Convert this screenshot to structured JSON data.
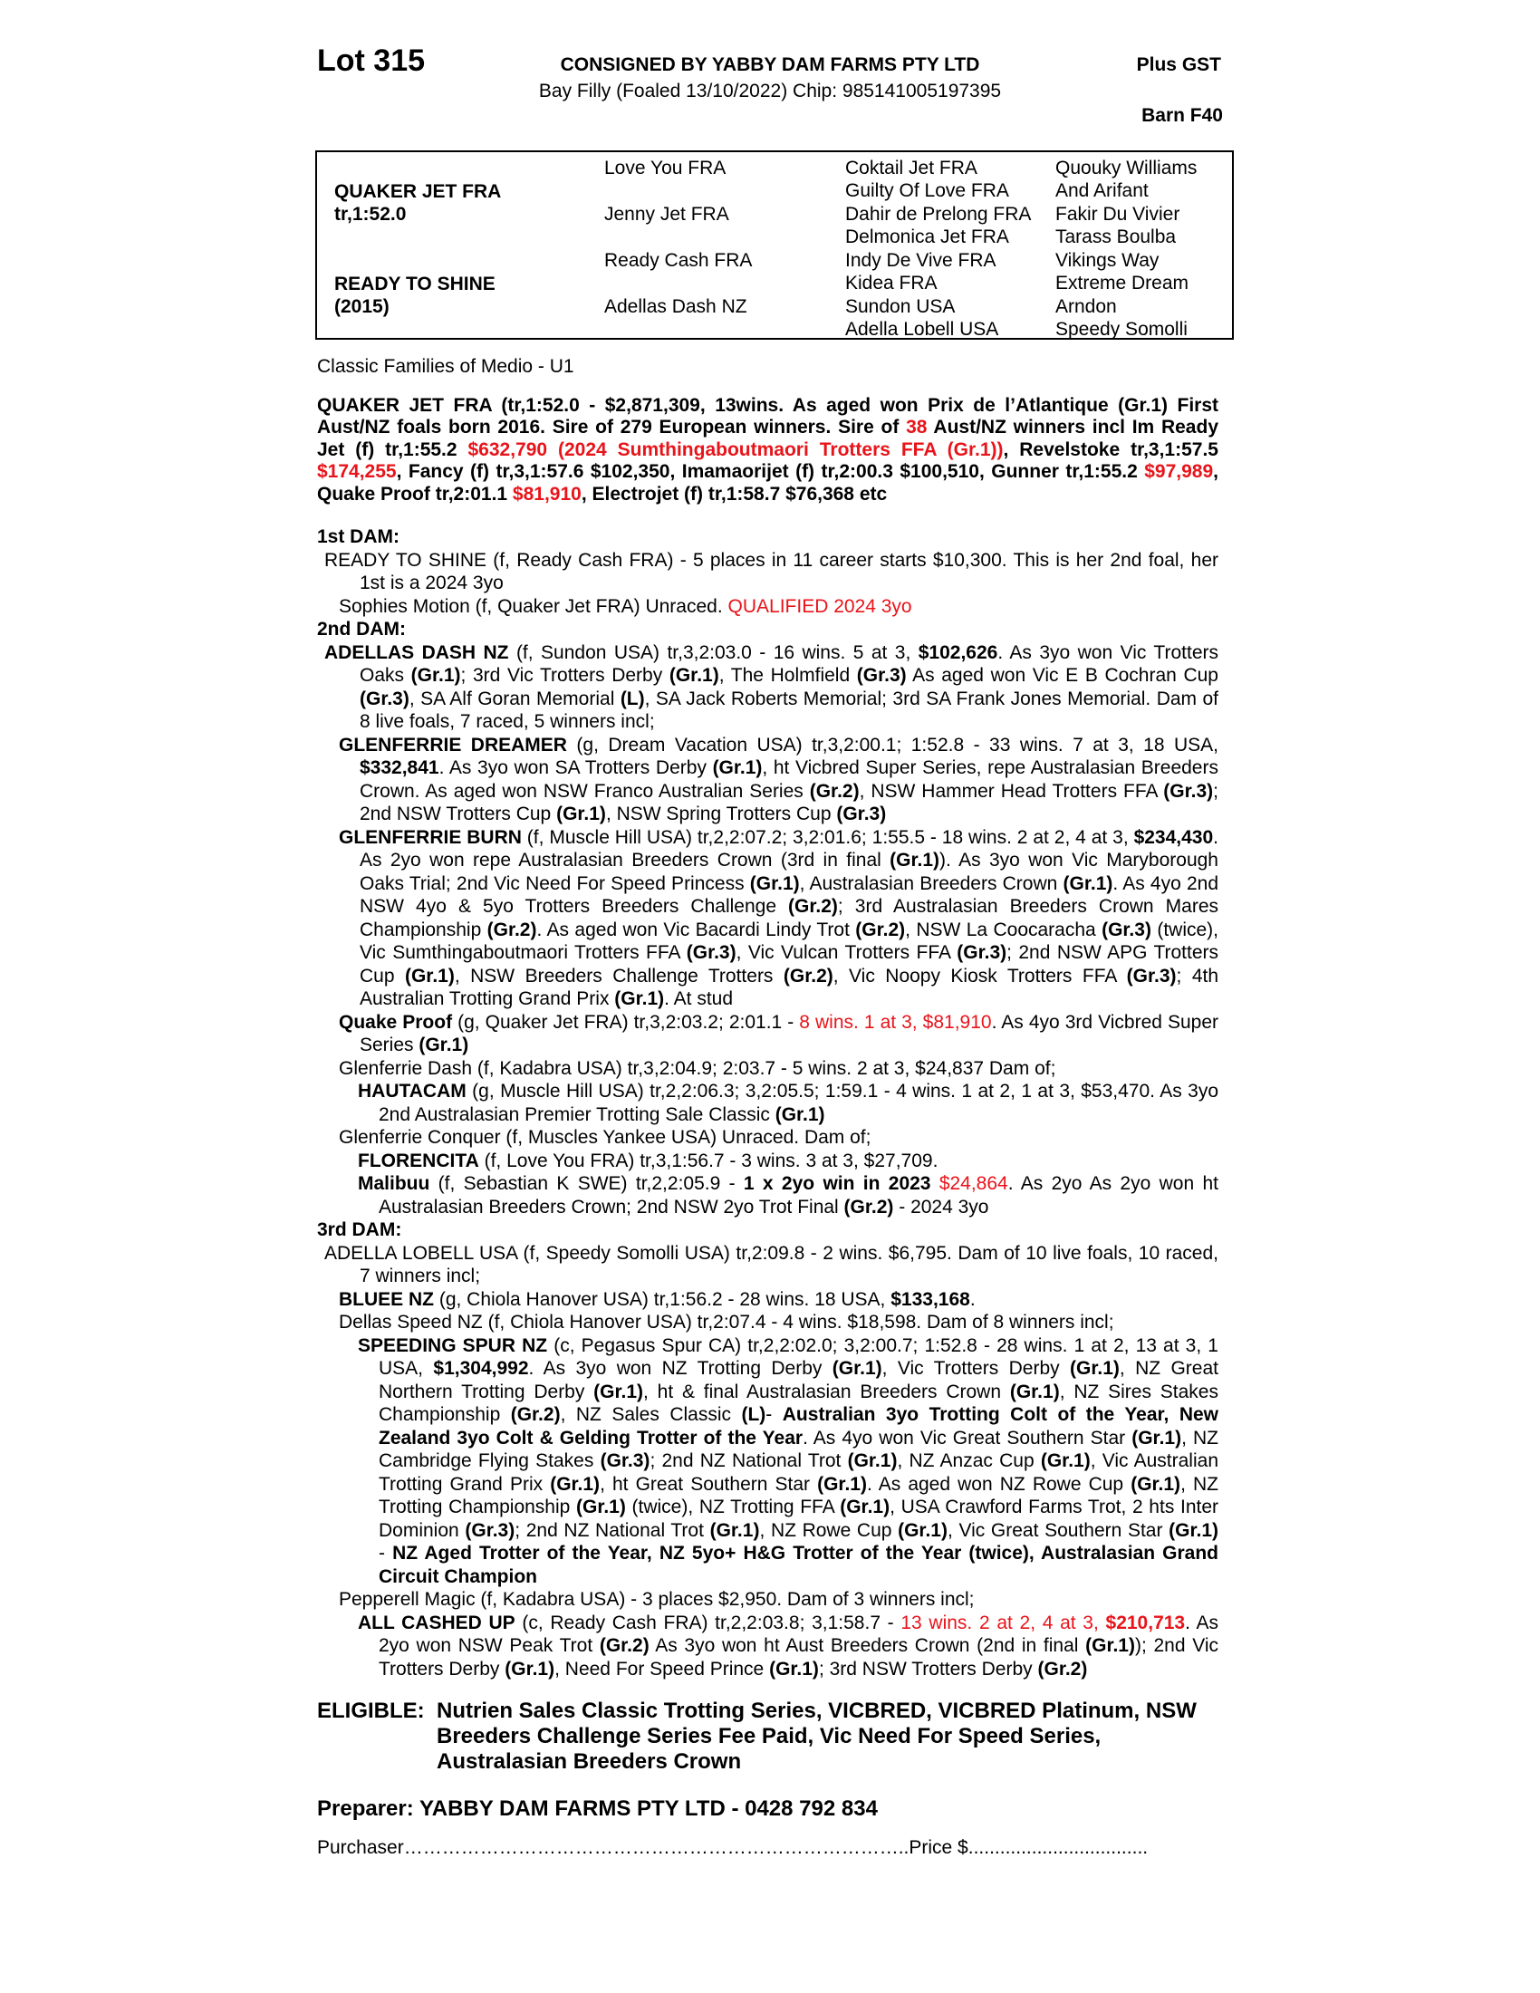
{
  "header": {
    "lot": "Lot 315",
    "consigned": "CONSIGNED BY YABBY DAM FARMS PTY LTD",
    "plus_gst": "Plus GST",
    "description": "Bay Filly (Foaled  13/10/2022) Chip: 985141005197395",
    "barn": "Barn F40"
  },
  "pedigree": {
    "sire": {
      "name": "QUAKER JET FRA",
      "record": "tr,1:52.0"
    },
    "dam": {
      "name": "READY TO SHINE",
      "year": "(2015)"
    },
    "grandparents": [
      "Love You FRA",
      "Jenny Jet FRA",
      "Ready Cash FRA",
      "Adellas Dash NZ"
    ],
    "great_grandparents": [
      "Coktail Jet FRA",
      "Guilty Of Love FRA",
      "Dahir de Prelong FRA",
      "Delmonica Jet FRA",
      "Indy De Vive FRA",
      "Kidea FRA",
      "Sundon USA",
      "Adella Lobell USA"
    ],
    "great_great_grandparents": [
      "Quouky Williams",
      "And Arifant",
      "Fakir Du Vivier",
      "Tarass Boulba",
      "Vikings Way",
      "Extreme Dream",
      "Arndon",
      "Speedy Somolli"
    ]
  },
  "family": "Classic Families of Medio - U1",
  "sire_runs": [
    [
      "QUAKER JET FRA (tr,1:52.0 - $2,871,309, 13wins. As aged won Prix de l’Atlantique (Gr.1) First Aust/NZ foals born 2016. Sire of 279 European winners. Sire of ",
      "b"
    ],
    [
      "38",
      "rb"
    ],
    [
      " Aust/NZ winners incl Im Ready Jet (f) tr,1:55.2 ",
      "b"
    ],
    [
      "$632,790 (2024 Sumthingaboutmaori Trotters FFA (Gr.1))",
      "rb"
    ],
    [
      ", Revelstoke tr,3,1:57.5 ",
      "b"
    ],
    [
      "$174,255",
      "rb"
    ],
    [
      ", Fancy (f) tr,3,1:57.6 $102,350, Imamaorijet (f) tr,2:00.3 $100,510, Gunner tr,1:55.2 ",
      "b"
    ],
    [
      "$97,989",
      "rb"
    ],
    [
      ", Quake Proof tr,2:01.1 ",
      "b"
    ],
    [
      "$81,910",
      "rb"
    ],
    [
      ",  Electrojet (f) tr,1:58.7 $76,368 etc",
      "b"
    ]
  ],
  "colors": {
    "highlight": "#e8141a",
    "text": "#000000"
  },
  "sections": [
    {
      "heading": "1st DAM:",
      "entries": [
        {
          "level": 0,
          "runs": [
            [
              "READY TO SHINE (f, Ready Cash FRA) - 5 places in 11 career starts $10,300. This is her 2nd foal, her 1st is a 2024 3yo",
              ""
            ]
          ]
        },
        {
          "level": 1,
          "runs": [
            [
              "Sophies Motion (f, Quaker Jet FRA) Unraced. ",
              ""
            ],
            [
              "QUALIFIED 2024 3yo",
              "r"
            ]
          ]
        }
      ]
    },
    {
      "heading": "2nd DAM:",
      "entries": [
        {
          "level": 0,
          "runs": [
            [
              "ADELLAS DASH NZ",
              "b"
            ],
            [
              " (f, Sundon USA) tr,3,2:03.0 - 16 wins. 5 at 3, ",
              ""
            ],
            [
              "$102,626",
              "b"
            ],
            [
              ". As 3yo won Vic Trotters Oaks ",
              ""
            ],
            [
              "(Gr.1)",
              "b"
            ],
            [
              "; 3rd Vic Trotters Derby ",
              ""
            ],
            [
              "(Gr.1)",
              "b"
            ],
            [
              ", The Holmfield ",
              ""
            ],
            [
              "(Gr.3)",
              "b"
            ],
            [
              " As aged won Vic E B Cochran Cup ",
              ""
            ],
            [
              "(Gr.3)",
              "b"
            ],
            [
              ", SA Alf Goran Memorial ",
              ""
            ],
            [
              "(L)",
              "b"
            ],
            [
              ", SA Jack Roberts Memorial; 3rd SA Frank Jones Memorial. Dam of 8 live foals, 7 raced, 5 winners incl;",
              ""
            ]
          ]
        },
        {
          "level": 1,
          "runs": [
            [
              "GLENFERRIE DREAMER",
              "b"
            ],
            [
              " (g, Dream Vacation USA) tr,3,2:00.1; 1:52.8 - 33 wins. 7 at 3, 18 USA, ",
              ""
            ],
            [
              "$332,841",
              "b"
            ],
            [
              ". As 3yo won SA Trotters Derby ",
              ""
            ],
            [
              "(Gr.1)",
              "b"
            ],
            [
              ", ht Vicbred Super Series, repe Australasian Breeders Crown. As aged won NSW Franco Australian Series ",
              ""
            ],
            [
              "(Gr.2)",
              "b"
            ],
            [
              ", NSW Hammer Head Trotters FFA ",
              ""
            ],
            [
              "(Gr.3)",
              "b"
            ],
            [
              "; 2nd NSW Trotters Cup ",
              ""
            ],
            [
              "(Gr.1)",
              "b"
            ],
            [
              ", NSW Spring Trotters Cup ",
              ""
            ],
            [
              "(Gr.3)",
              "b"
            ]
          ]
        },
        {
          "level": 1,
          "runs": [
            [
              "GLENFERRIE BURN",
              "b"
            ],
            [
              " (f, Muscle Hill USA) tr,2,2:07.2; 3,2:01.6; 1:55.5 - 18 wins. 2 at 2, 4 at 3, ",
              ""
            ],
            [
              "$234,430",
              "b"
            ],
            [
              ". As 2yo won repe Australasian Breeders Crown (3rd in final ",
              ""
            ],
            [
              "(Gr.1)",
              "b"
            ],
            [
              "). As 3yo won Vic Maryborough Oaks Trial; 2nd Vic Need For Speed Princess ",
              ""
            ],
            [
              "(Gr.1)",
              "b"
            ],
            [
              ", Australasian Breeders Crown ",
              ""
            ],
            [
              "(Gr.1)",
              "b"
            ],
            [
              ". As 4yo 2nd NSW 4yo & 5yo Trotters Breeders Challenge ",
              ""
            ],
            [
              "(Gr.2)",
              "b"
            ],
            [
              "; 3rd Australasian Breeders Crown Mares Championship ",
              ""
            ],
            [
              "(Gr.2)",
              "b"
            ],
            [
              ". As aged won Vic Bacardi Lindy Trot ",
              ""
            ],
            [
              "(Gr.2)",
              "b"
            ],
            [
              ", NSW La Coocaracha ",
              ""
            ],
            [
              "(Gr.3)",
              "b"
            ],
            [
              " (twice), Vic Sumthingaboutmaori Trotters FFA ",
              ""
            ],
            [
              "(Gr.3)",
              "b"
            ],
            [
              ", Vic Vulcan Trotters FFA ",
              ""
            ],
            [
              "(Gr.3)",
              "b"
            ],
            [
              "; 2nd NSW APG Trotters Cup ",
              ""
            ],
            [
              "(Gr.1)",
              "b"
            ],
            [
              ", NSW Breeders Challenge Trotters ",
              ""
            ],
            [
              "(Gr.2)",
              "b"
            ],
            [
              ", Vic Noopy Kiosk Trotters FFA ",
              ""
            ],
            [
              "(Gr.3)",
              "b"
            ],
            [
              "; 4th Australian Trotting Grand Prix ",
              ""
            ],
            [
              "(Gr.1)",
              "b"
            ],
            [
              ". At stud",
              ""
            ]
          ]
        },
        {
          "level": 1,
          "runs": [
            [
              "Quake Proof",
              "b"
            ],
            [
              " (g, Quaker Jet FRA) tr,3,2:03.2; 2:01.1 - ",
              ""
            ],
            [
              "8 wins. 1 at 3, $81,910",
              "r"
            ],
            [
              ". As 4yo 3rd Vicbred Super Series ",
              ""
            ],
            [
              "(Gr.1)",
              "b"
            ]
          ]
        },
        {
          "level": 1,
          "runs": [
            [
              "Glenferrie Dash (f, Kadabra USA) tr,3,2:04.9; 2:03.7 - 5 wins. 2 at 3, $24,837 Dam of;",
              ""
            ]
          ]
        },
        {
          "level": 2,
          "runs": [
            [
              "HAUTACAM",
              "b"
            ],
            [
              " (g, Muscle Hill USA) tr,2,2:06.3; 3,2:05.5; 1:59.1 - 4 wins. 1 at 2, 1 at 3, $53,470. As 3yo 2nd Australasian Premier Trotting Sale Classic ",
              ""
            ],
            [
              "(Gr.1)",
              "b"
            ]
          ]
        },
        {
          "level": 1,
          "runs": [
            [
              "Glenferrie Conquer (f, Muscles Yankee USA) Unraced. Dam of;",
              ""
            ]
          ]
        },
        {
          "level": 2,
          "runs": [
            [
              "FLORENCITA",
              "b"
            ],
            [
              " (f, Love You FRA) tr,3,1:56.7 - 3 wins. 3 at 3, $27,709.",
              ""
            ]
          ]
        },
        {
          "level": 2,
          "runs": [
            [
              "Malibuu",
              "b"
            ],
            [
              " (f, Sebastian K SWE) tr,2,2:05.9 - ",
              ""
            ],
            [
              "1 x 2yo win in 2023",
              "b"
            ],
            [
              " ",
              ""
            ],
            [
              "$24,864",
              "r"
            ],
            [
              ". As 2yo As 2yo won ht Australasian Breeders Crown; 2nd NSW 2yo Trot Final ",
              ""
            ],
            [
              "(Gr.2)",
              "b"
            ],
            [
              " - 2024 3yo",
              ""
            ]
          ]
        }
      ]
    },
    {
      "heading": "3rd DAM:",
      "entries": [
        {
          "level": 0,
          "runs": [
            [
              "ADELLA LOBELL USA (f, Speedy Somolli USA) tr,2:09.8 - 2 wins. $6,795. Dam of 10 live foals, 10 raced, 7 winners incl;",
              ""
            ]
          ]
        },
        {
          "level": 1,
          "runs": [
            [
              "BLUEE NZ",
              "b"
            ],
            [
              " (g, Chiola Hanover USA) tr,1:56.2 - 28 wins. 18 USA, ",
              ""
            ],
            [
              "$133,168",
              "b"
            ],
            [
              ".",
              ""
            ]
          ]
        },
        {
          "level": 1,
          "runs": [
            [
              "Dellas Speed NZ (f, Chiola Hanover USA) tr,2:07.4 - 4 wins. $18,598. Dam of 8 winners incl;",
              ""
            ]
          ]
        },
        {
          "level": 2,
          "runs": [
            [
              "SPEEDING SPUR NZ",
              "b"
            ],
            [
              " (c, Pegasus Spur CA) tr,2,2:02.0; 3,2:00.7; 1:52.8 - 28 wins. 1 at 2, 13 at 3, 1 USA, ",
              ""
            ],
            [
              "$1,304,992",
              "b"
            ],
            [
              ". As 3yo won NZ Trotting Derby ",
              ""
            ],
            [
              "(Gr.1)",
              "b"
            ],
            [
              ", Vic Trotters Derby ",
              ""
            ],
            [
              "(Gr.1)",
              "b"
            ],
            [
              ", NZ Great Northern Trotting Derby ",
              ""
            ],
            [
              "(Gr.1)",
              "b"
            ],
            [
              ", ht & final Australasian Breeders Crown ",
              ""
            ],
            [
              "(Gr.1)",
              "b"
            ],
            [
              ", NZ Sires Stakes Championship ",
              ""
            ],
            [
              "(Gr.2)",
              "b"
            ],
            [
              ", NZ Sales Classic ",
              ""
            ],
            [
              "(L)",
              "b"
            ],
            [
              "- ",
              ""
            ],
            [
              "Australian 3yo Trotting Colt of the Year, New Zealand 3yo Colt & Gelding Trotter of the Year",
              "b"
            ],
            [
              ". As 4yo won Vic Great Southern Star ",
              ""
            ],
            [
              "(Gr.1)",
              "b"
            ],
            [
              ", NZ Cambridge Flying Stakes ",
              ""
            ],
            [
              "(Gr.3)",
              "b"
            ],
            [
              "; 2nd NZ National Trot ",
              ""
            ],
            [
              "(Gr.1)",
              "b"
            ],
            [
              ", NZ Anzac Cup ",
              ""
            ],
            [
              "(Gr.1)",
              "b"
            ],
            [
              ", Vic Australian Trotting Grand Prix ",
              ""
            ],
            [
              "(Gr.1)",
              "b"
            ],
            [
              ", ht Great Southern Star ",
              ""
            ],
            [
              "(Gr.1)",
              "b"
            ],
            [
              ". As aged won NZ Rowe Cup ",
              ""
            ],
            [
              "(Gr.1)",
              "b"
            ],
            [
              ", NZ Trotting Championship ",
              ""
            ],
            [
              "(Gr.1)",
              "b"
            ],
            [
              " (twice), NZ Trotting FFA ",
              ""
            ],
            [
              "(Gr.1)",
              "b"
            ],
            [
              ", USA Crawford Farms Trot, 2 hts Inter Dominion ",
              ""
            ],
            [
              "(Gr.3)",
              "b"
            ],
            [
              "; 2nd NZ National Trot ",
              ""
            ],
            [
              "(Gr.1)",
              "b"
            ],
            [
              ", NZ Rowe Cup ",
              ""
            ],
            [
              "(Gr.1)",
              "b"
            ],
            [
              ", Vic Great Southern Star ",
              ""
            ],
            [
              "(Gr.1)",
              "b"
            ],
            [
              " - ",
              ""
            ],
            [
              "NZ Aged Trotter of the Year, NZ 5yo+ H&G Trotter of the Year (twice), Australasian Grand Circuit Champion",
              "b"
            ]
          ]
        },
        {
          "level": 1,
          "runs": [
            [
              "Pepperell Magic (f, Kadabra USA) - 3 places $2,950. Dam of 3 winners incl;",
              ""
            ]
          ]
        },
        {
          "level": 2,
          "runs": [
            [
              "ALL CASHED UP",
              "b"
            ],
            [
              " (c, Ready Cash FRA) tr,2,2:03.8; 3,1:58.7 - ",
              ""
            ],
            [
              "13 wins. 2 at 2, 4 at 3, ",
              "r"
            ],
            [
              "$210,713",
              "rb"
            ],
            [
              ". As 2yo won NSW Peak Trot ",
              ""
            ],
            [
              "(Gr.2)",
              "b"
            ],
            [
              " As 3yo won ht Aust Breeders Crown (2nd in final ",
              ""
            ],
            [
              "(Gr.1)",
              "b"
            ],
            [
              "); 2nd Vic Trotters Derby ",
              ""
            ],
            [
              "(Gr.1)",
              "b"
            ],
            [
              ", Need For Speed Prince ",
              ""
            ],
            [
              "(Gr.1)",
              "b"
            ],
            [
              "; 3rd NSW Trotters Derby ",
              ""
            ],
            [
              "(Gr.2)",
              "b"
            ]
          ]
        }
      ]
    }
  ],
  "eligible": {
    "label": "ELIGIBLE:",
    "value": "Nutrien Sales Classic Trotting Series, VICBRED, VICBRED Platinum, NSW Breeders Challenge Series Fee Paid, Vic Need For Speed Series, Australasian Breeders Crown"
  },
  "preparer": "Preparer: YABBY DAM FARMS PTY LTD - 0428 792 834",
  "purchaser_line": "Purchaser……………………………………………………………………..Price $.................................."
}
